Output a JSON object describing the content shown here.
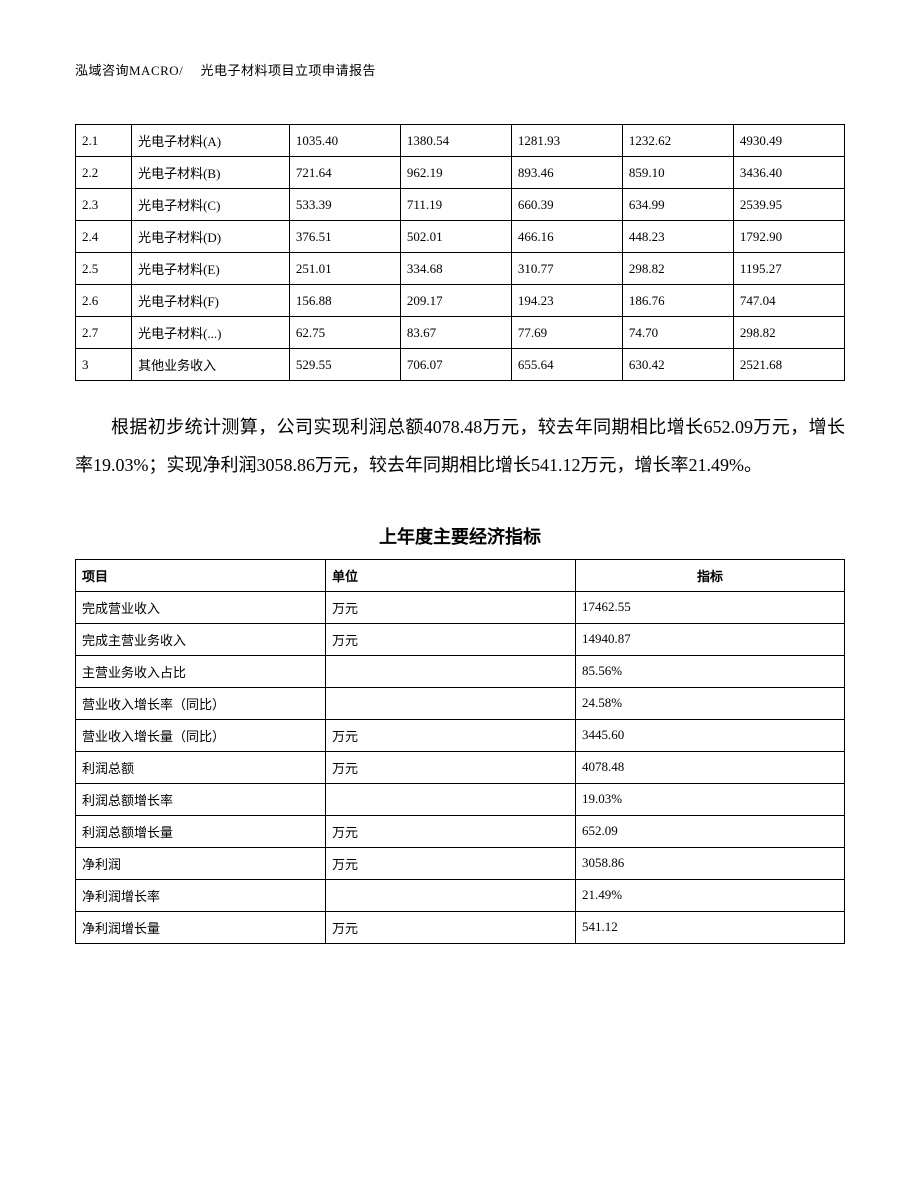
{
  "header": "泓域咨询MACRO/　 光电子材料项目立项申请报告",
  "table1": {
    "col_widths": [
      "48px",
      "135px",
      "95px",
      "95px",
      "95px",
      "95px",
      "95px"
    ],
    "rows": [
      [
        "2.1",
        "光电子材料(A)",
        "1035.40",
        "1380.54",
        "1281.93",
        "1232.62",
        "4930.49"
      ],
      [
        "2.2",
        "光电子材料(B)",
        "721.64",
        "962.19",
        "893.46",
        "859.10",
        "3436.40"
      ],
      [
        "2.3",
        "光电子材料(C)",
        "533.39",
        "711.19",
        "660.39",
        "634.99",
        "2539.95"
      ],
      [
        "2.4",
        "光电子材料(D)",
        "376.51",
        "502.01",
        "466.16",
        "448.23",
        "1792.90"
      ],
      [
        "2.5",
        "光电子材料(E)",
        "251.01",
        "334.68",
        "310.77",
        "298.82",
        "1195.27"
      ],
      [
        "2.6",
        "光电子材料(F)",
        "156.88",
        "209.17",
        "194.23",
        "186.76",
        "747.04"
      ],
      [
        "2.7",
        "光电子材料(...)",
        "62.75",
        "83.67",
        "77.69",
        "74.70",
        "298.82"
      ],
      [
        "3",
        "其他业务收入",
        "529.55",
        "706.07",
        "655.64",
        "630.42",
        "2521.68"
      ]
    ]
  },
  "paragraph": "根据初步统计测算，公司实现利润总额4078.48万元，较去年同期相比增长652.09万元，增长率19.03%；实现净利润3058.86万元，较去年同期相比增长541.12万元，增长率21.49%。",
  "table2": {
    "title": "上年度主要经济指标",
    "headers": [
      "项目",
      "单位",
      "指标"
    ],
    "rows": [
      [
        "完成营业收入",
        "万元",
        "17462.55"
      ],
      [
        "完成主营业务收入",
        "万元",
        "14940.87"
      ],
      [
        "主营业务收入占比",
        "",
        "85.56%"
      ],
      [
        "营业收入增长率（同比）",
        "",
        "24.58%"
      ],
      [
        "营业收入增长量（同比）",
        "万元",
        "3445.60"
      ],
      [
        "利润总额",
        "万元",
        "4078.48"
      ],
      [
        "利润总额增长率",
        "",
        "19.03%"
      ],
      [
        "利润总额增长量",
        "万元",
        "652.09"
      ],
      [
        "净利润",
        "万元",
        "3058.86"
      ],
      [
        "净利润增长率",
        "",
        "21.49%"
      ],
      [
        "净利润增长量",
        "万元",
        "541.12"
      ]
    ]
  }
}
